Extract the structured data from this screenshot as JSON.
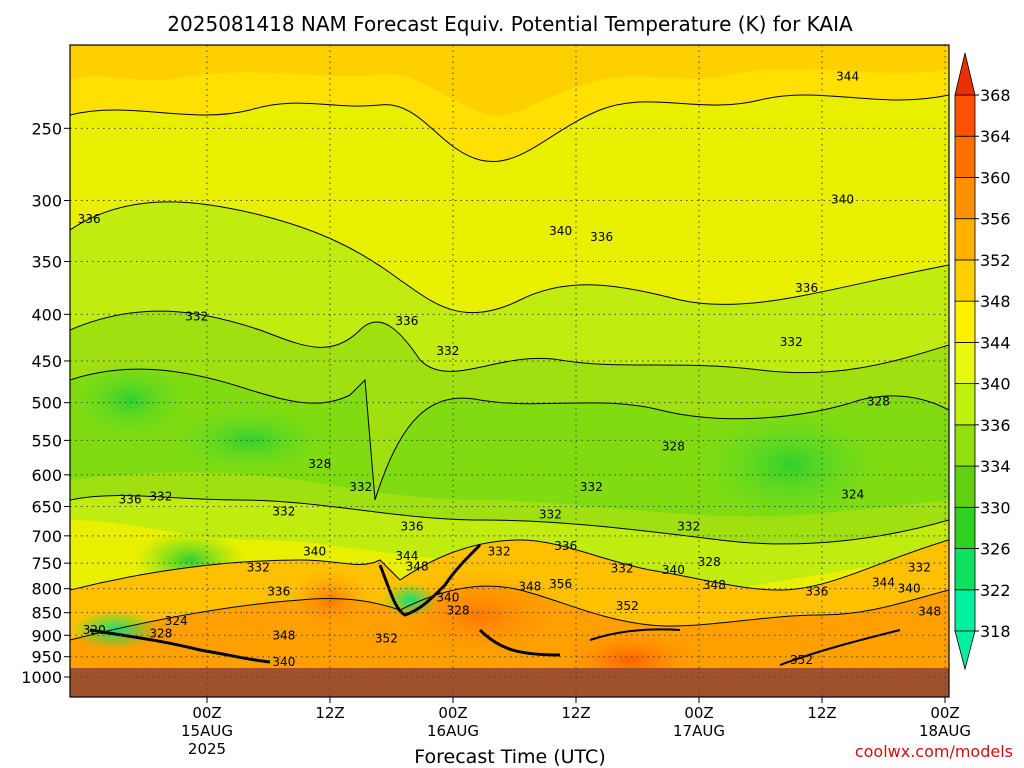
{
  "chart_data": {
    "type": "contour",
    "title": "2025081418 NAM Forecast Equiv. Potential Temperature (K) for KAIA",
    "xlabel": "Forecast Time (UTC)",
    "ylabel": "",
    "credit": "coolwx.com/models",
    "y_axis": {
      "quantity": "pressure (hPa)",
      "range": [
        1000,
        200
      ],
      "ticks": [
        1000,
        950,
        900,
        850,
        800,
        750,
        700,
        650,
        600,
        550,
        500,
        450,
        400,
        350,
        300,
        250
      ]
    },
    "x_axis": {
      "quantity": "forecast hour",
      "range": [
        -6,
        78
      ],
      "ticks": [
        {
          "hour": 6,
          "label": "00Z",
          "sub1": "15AUG",
          "sub2": "2025"
        },
        {
          "hour": 18,
          "label": "12Z",
          "sub1": "",
          "sub2": ""
        },
        {
          "hour": 30,
          "label": "00Z",
          "sub1": "16AUG",
          "sub2": ""
        },
        {
          "hour": 42,
          "label": "12Z",
          "sub1": "",
          "sub2": ""
        },
        {
          "hour": 54,
          "label": "00Z",
          "sub1": "17AUG",
          "sub2": ""
        },
        {
          "hour": 66,
          "label": "12Z",
          "sub1": "",
          "sub2": ""
        },
        {
          "hour": 78,
          "label": "00Z",
          "sub1": "18AUG",
          "sub2": ""
        }
      ]
    },
    "colorbar": {
      "levels": [
        318,
        322,
        326,
        330,
        334,
        336,
        340,
        344,
        348,
        352,
        356,
        360,
        364,
        368
      ],
      "colors": [
        "#00f0a0",
        "#10e060",
        "#30d020",
        "#60d010",
        "#90e010",
        "#c0f010",
        "#e8f810",
        "#fff000",
        "#ffd000",
        "#ffb000",
        "#ff9000",
        "#ff7000",
        "#ff5000",
        "#e83000"
      ]
    },
    "contour_labels": [
      {
        "value": 344,
        "x": 68.5,
        "p": 220
      },
      {
        "value": 340,
        "x": 40.5,
        "p": 325
      },
      {
        "value": 336,
        "x": 44.5,
        "p": 330
      },
      {
        "value": 336,
        "x": -5.5,
        "p": 315
      },
      {
        "value": 340,
        "x": 68,
        "p": 300
      },
      {
        "value": 336,
        "x": 64.5,
        "p": 375
      },
      {
        "value": 332,
        "x": 5,
        "p": 403
      },
      {
        "value": 336,
        "x": 25.5,
        "p": 408
      },
      {
        "value": 332,
        "x": 29.5,
        "p": 440
      },
      {
        "value": 332,
        "x": 63,
        "p": 430
      },
      {
        "value": 328,
        "x": 71.5,
        "p": 500
      },
      {
        "value": 328,
        "x": 51.5,
        "p": 560
      },
      {
        "value": 328,
        "x": 17,
        "p": 585
      },
      {
        "value": 332,
        "x": 43.5,
        "p": 620
      },
      {
        "value": 332,
        "x": 21,
        "p": 620
      },
      {
        "value": 324,
        "x": 69,
        "p": 632
      },
      {
        "value": 336,
        "x": -1.5,
        "p": 640
      },
      {
        "value": 332,
        "x": 1.5,
        "p": 635
      },
      {
        "value": 332,
        "x": 13.5,
        "p": 660
      },
      {
        "value": 332,
        "x": 39.5,
        "p": 665
      },
      {
        "value": 332,
        "x": 53,
        "p": 685
      },
      {
        "value": 336,
        "x": 26,
        "p": 685
      },
      {
        "value": 336,
        "x": 41,
        "p": 720
      },
      {
        "value": 340,
        "x": 16.5,
        "p": 730
      },
      {
        "value": 344,
        "x": 25.5,
        "p": 738
      },
      {
        "value": 332,
        "x": 34.5,
        "p": 730
      },
      {
        "value": 328,
        "x": 55,
        "p": 750
      },
      {
        "value": 348,
        "x": 26.5,
        "p": 758
      },
      {
        "value": 332,
        "x": 11,
        "p": 760
      },
      {
        "value": 332,
        "x": 46.5,
        "p": 762
      },
      {
        "value": 340,
        "x": 51.5,
        "p": 765
      },
      {
        "value": 332,
        "x": 75.5,
        "p": 760
      },
      {
        "value": 344,
        "x": 72,
        "p": 790
      },
      {
        "value": 348,
        "x": 37.5,
        "p": 798
      },
      {
        "value": 356,
        "x": 40.5,
        "p": 793
      },
      {
        "value": 348,
        "x": 55.5,
        "p": 795
      },
      {
        "value": 340,
        "x": 74.5,
        "p": 802
      },
      {
        "value": 336,
        "x": 13,
        "p": 808
      },
      {
        "value": 336,
        "x": 65.5,
        "p": 808
      },
      {
        "value": 340,
        "x": 29.5,
        "p": 820
      },
      {
        "value": 352,
        "x": 47,
        "p": 838
      },
      {
        "value": 328,
        "x": 30.5,
        "p": 848
      },
      {
        "value": 348,
        "x": 76.5,
        "p": 850
      },
      {
        "value": 324,
        "x": 3,
        "p": 870
      },
      {
        "value": 320,
        "x": -5,
        "p": 890
      },
      {
        "value": 328,
        "x": 1.5,
        "p": 898
      },
      {
        "value": 348,
        "x": 13.5,
        "p": 903
      },
      {
        "value": 352,
        "x": 23.5,
        "p": 910
      },
      {
        "value": 352,
        "x": 64,
        "p": 960
      },
      {
        "value": 340,
        "x": 13.5,
        "p": 965
      }
    ]
  }
}
